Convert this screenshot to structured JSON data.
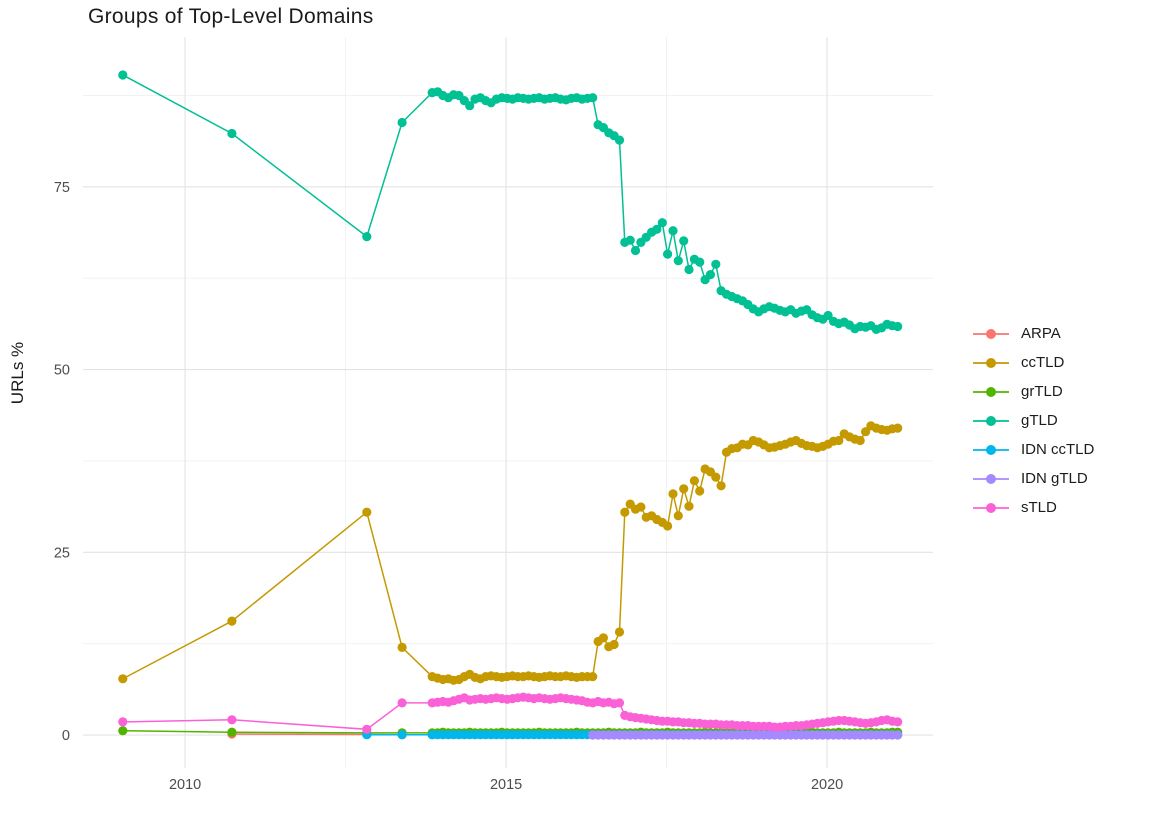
{
  "title": "Groups of Top-Level Domains",
  "chart_data": {
    "type": "line",
    "title": "Groups of Top-Level Domains",
    "xlabel": "",
    "ylabel": "URLs %",
    "grid": "on",
    "legend_position": "right",
    "x_ticks": [
      2010,
      2015,
      2020
    ],
    "x_minor_ticks": [
      2012.5,
      2017.5
    ],
    "y_ticks": [
      0,
      25,
      50,
      75
    ],
    "y_minor_ticks": [
      12.5,
      37.5,
      62.5,
      87.5
    ],
    "x_domain": [
      2008.41,
      2021.65
    ],
    "y_domain": [
      -4.5,
      95.5
    ],
    "colors": {
      "grid_major": "#e3e3e3",
      "grid_minor": "#f1f1f1",
      "axis_text": "#4d4d4d",
      "title_text": "#1b1b1b"
    },
    "series": [
      {
        "name": "ARPA",
        "color": "#F8766D",
        "points": [
          [
            2010.73,
            0.15
          ],
          [
            2012.83,
            0.08
          ],
          [
            2013.38,
            0.05
          ],
          [
            2013.85,
            0.05
          ]
        ]
      },
      {
        "name": "ccTLD",
        "color": "#C49A00",
        "points": [
          [
            2009.03,
            7.7
          ],
          [
            2010.73,
            15.6
          ],
          [
            2012.83,
            30.5
          ],
          [
            2013.38,
            12.0
          ]
        ],
        "dense": {
          "x_start": 2013.85,
          "x_step": 0.08333,
          "values": [
            8.0,
            7.8,
            7.6,
            7.7,
            7.5,
            7.6,
            8.0,
            8.3,
            7.9,
            7.7,
            8.0,
            8.1,
            8.0,
            7.9,
            8.0,
            8.1,
            8.0,
            8.0,
            8.1,
            8.0,
            7.9,
            8.0,
            8.1,
            8.0,
            8.0,
            8.1,
            8.0,
            7.9,
            8.0,
            8.0,
            8.0,
            12.8,
            13.3,
            12.1,
            12.4,
            14.1,
            30.5,
            31.6,
            30.9,
            31.2,
            29.8,
            30.0,
            29.5,
            29.1,
            28.6,
            33.0,
            30.0,
            33.7,
            31.3,
            34.8,
            33.4,
            36.4,
            36.0,
            35.3,
            34.1,
            38.7,
            39.2,
            39.3,
            39.8,
            39.7,
            40.3,
            40.1,
            39.7,
            39.3,
            39.4,
            39.6,
            39.8,
            40.1,
            40.3,
            39.9,
            39.6,
            39.5,
            39.3,
            39.5,
            39.8,
            40.2,
            40.3,
            41.2,
            40.8,
            40.5,
            40.3,
            41.5,
            42.3,
            42.0,
            41.8,
            41.7,
            41.9,
            42.0
          ]
        }
      },
      {
        "name": "grTLD",
        "color": "#53B400",
        "points": [
          [
            2009.03,
            0.6
          ],
          [
            2010.73,
            0.4
          ],
          [
            2012.83,
            0.3
          ],
          [
            2013.38,
            0.3
          ]
        ],
        "dense": {
          "x_start": 2013.85,
          "x_step": 0.08333,
          "values": [
            0.3,
            0.3,
            0.4,
            0.3,
            0.3,
            0.3,
            0.3,
            0.4,
            0.3,
            0.3,
            0.3,
            0.3,
            0.3,
            0.4,
            0.3,
            0.3,
            0.3,
            0.3,
            0.3,
            0.3,
            0.4,
            0.3,
            0.3,
            0.3,
            0.3,
            0.3,
            0.3,
            0.4,
            0.3,
            0.3,
            0.3,
            0.3,
            0.3,
            0.4,
            0.3,
            0.3,
            0.3,
            0.3,
            0.3,
            0.4,
            0.3,
            0.3,
            0.3,
            0.3,
            0.4,
            0.3,
            0.3,
            0.3,
            0.3,
            0.3,
            0.3,
            0.4,
            0.3,
            0.3,
            0.3,
            0.3,
            0.3,
            0.3,
            0.4,
            0.3,
            0.3,
            0.3,
            0.3,
            0.3,
            0.4,
            0.3,
            0.3,
            0.3,
            0.3,
            0.3,
            0.3,
            0.4,
            0.3,
            0.3,
            0.3,
            0.3,
            0.4,
            0.3,
            0.3,
            0.3,
            0.3,
            0.3,
            0.4,
            0.3,
            0.3,
            0.3,
            0.4,
            0.4
          ]
        }
      },
      {
        "name": "gTLD",
        "color": "#00C094",
        "points": [
          [
            2009.03,
            90.3
          ],
          [
            2010.73,
            82.3
          ],
          [
            2012.83,
            68.2
          ],
          [
            2013.38,
            83.8
          ]
        ],
        "dense": {
          "x_start": 2013.85,
          "x_step": 0.08333,
          "values": [
            87.9,
            88.0,
            87.5,
            87.2,
            87.6,
            87.5,
            86.8,
            86.1,
            87.0,
            87.2,
            86.8,
            86.5,
            87.0,
            87.2,
            87.1,
            87.0,
            87.2,
            87.1,
            87.0,
            87.1,
            87.2,
            87.0,
            87.1,
            87.2,
            87.0,
            86.9,
            87.1,
            87.2,
            87.0,
            87.1,
            87.2,
            83.5,
            83.1,
            82.4,
            82.0,
            81.4,
            67.4,
            67.7,
            66.3,
            67.4,
            68.1,
            68.8,
            69.2,
            70.1,
            65.8,
            69.0,
            64.9,
            67.6,
            63.7,
            65.1,
            64.7,
            62.3,
            63.0,
            64.4,
            60.8,
            60.3,
            60.0,
            59.7,
            59.4,
            58.9,
            58.3,
            57.9,
            58.3,
            58.6,
            58.4,
            58.1,
            57.9,
            58.2,
            57.7,
            58.0,
            58.2,
            57.5,
            57.1,
            56.9,
            57.4,
            56.6,
            56.3,
            56.5,
            56.1,
            55.6,
            55.9,
            55.8,
            56.0,
            55.5,
            55.7,
            56.2,
            56.0,
            55.9
          ]
        }
      },
      {
        "name": "IDN ccTLD",
        "color": "#00B6EB",
        "points": [
          [
            2012.83,
            0.05
          ],
          [
            2013.38,
            0.05
          ]
        ],
        "dense": {
          "x_start": 2013.85,
          "x_step": 0.08333,
          "fill": {
            "count": 88,
            "value": 0.05
          }
        }
      },
      {
        "name": "IDN gTLD",
        "color": "#A58AFF",
        "points": [],
        "dense": {
          "x_start": 2016.35,
          "x_step": 0.08333,
          "fill": {
            "count": 58,
            "value": 0.02
          }
        }
      },
      {
        "name": "sTLD",
        "color": "#FB61D7",
        "points": [
          [
            2009.03,
            1.8
          ],
          [
            2010.73,
            2.1
          ],
          [
            2012.83,
            0.8
          ],
          [
            2013.38,
            4.4
          ]
        ],
        "dense": {
          "x_start": 2013.85,
          "x_step": 0.08333,
          "values": [
            4.4,
            4.5,
            4.6,
            4.5,
            4.7,
            4.9,
            5.1,
            4.8,
            4.9,
            5.0,
            4.9,
            5.0,
            5.1,
            5.0,
            4.9,
            5.0,
            5.1,
            5.2,
            5.1,
            5.0,
            5.1,
            5.0,
            4.9,
            5.0,
            5.1,
            5.0,
            4.9,
            4.8,
            4.7,
            4.5,
            4.4,
            4.6,
            4.4,
            4.5,
            4.3,
            4.4,
            2.7,
            2.5,
            2.4,
            2.3,
            2.2,
            2.1,
            2.0,
            1.9,
            1.9,
            1.8,
            1.8,
            1.7,
            1.7,
            1.6,
            1.6,
            1.5,
            1.5,
            1.5,
            1.4,
            1.4,
            1.4,
            1.3,
            1.3,
            1.3,
            1.2,
            1.2,
            1.2,
            1.2,
            1.1,
            1.1,
            1.2,
            1.2,
            1.3,
            1.3,
            1.4,
            1.5,
            1.6,
            1.7,
            1.8,
            1.9,
            2.0,
            2.0,
            1.9,
            1.8,
            1.7,
            1.6,
            1.7,
            1.8,
            2.0,
            2.1,
            1.9,
            1.8
          ]
        }
      }
    ]
  }
}
